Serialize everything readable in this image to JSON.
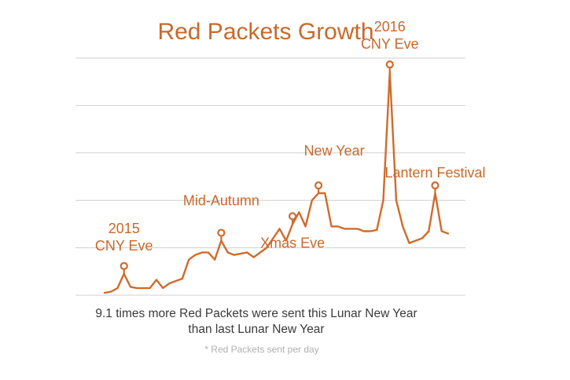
{
  "chart_data": {
    "type": "line",
    "title": "Red Packets Growth",
    "xlabel": "",
    "ylabel": "",
    "grid": true,
    "ylim": [
      0,
      10
    ],
    "gridlines": [
      0,
      2,
      4,
      6,
      8,
      10
    ],
    "x": [
      "2015 CNY Eve",
      "",
      "",
      "",
      "",
      "",
      "",
      "",
      "",
      "",
      "",
      "",
      "",
      "",
      "",
      "",
      "",
      "",
      "",
      "",
      "",
      "",
      "",
      "",
      "",
      "",
      "",
      "",
      "",
      "",
      "",
      "",
      "",
      "",
      "",
      "",
      "",
      "",
      "",
      "",
      "",
      "",
      "",
      "",
      "",
      "",
      "",
      "",
      "",
      "",
      "",
      "",
      "",
      ""
    ],
    "series": [
      {
        "values": [
          0.1,
          0.15,
          0.3,
          0.9,
          0.35,
          0.3,
          0.3,
          0.3,
          0.65,
          0.3,
          0.5,
          0.6,
          0.7,
          1.5,
          1.7,
          1.8,
          1.8,
          1.5,
          2.3,
          1.8,
          1.7,
          1.75,
          1.8,
          1.6,
          1.8,
          2.0,
          2.4,
          2.8,
          2.3,
          3.0,
          3.5,
          2.9,
          4.0,
          4.3,
          4.3,
          2.9,
          2.9,
          2.8,
          2.8,
          2.8,
          2.7,
          2.7,
          2.75,
          4.0,
          9.4,
          4.0,
          2.9,
          2.2,
          2.3,
          2.4,
          2.7,
          4.3,
          2.7,
          2.6
        ],
        "markers": [
          {
            "index": 3,
            "label": "2015 CNY Eve",
            "label_lines": [
              "2015",
              "CNY Eve"
            ]
          },
          {
            "index": 18,
            "label": "Mid-Autumn",
            "label_lines": [
              "Mid-Autumn"
            ]
          },
          {
            "index": 29,
            "label": "Xmas Eve",
            "label_lines": [
              "Xmas Eve"
            ]
          },
          {
            "index": 33,
            "label": "New Year",
            "label_lines": [
              "New Year"
            ]
          },
          {
            "index": 44,
            "label": "2016 CNY Eve",
            "label_lines": [
              "2016",
              "CNY Eve"
            ]
          },
          {
            "index": 51,
            "label": "Lantern Festival",
            "label_lines": [
              "Lantern Festival"
            ]
          }
        ]
      }
    ]
  },
  "caption": {
    "line1": "9.1 times more Red Packets were sent this Lunar New Year",
    "line2": "than last Lunar New Year"
  },
  "footnote": "* Red Packets sent per day",
  "colors": {
    "series": "#d06b2b",
    "title": "#c8692a",
    "grid": "#cfcfcf"
  }
}
